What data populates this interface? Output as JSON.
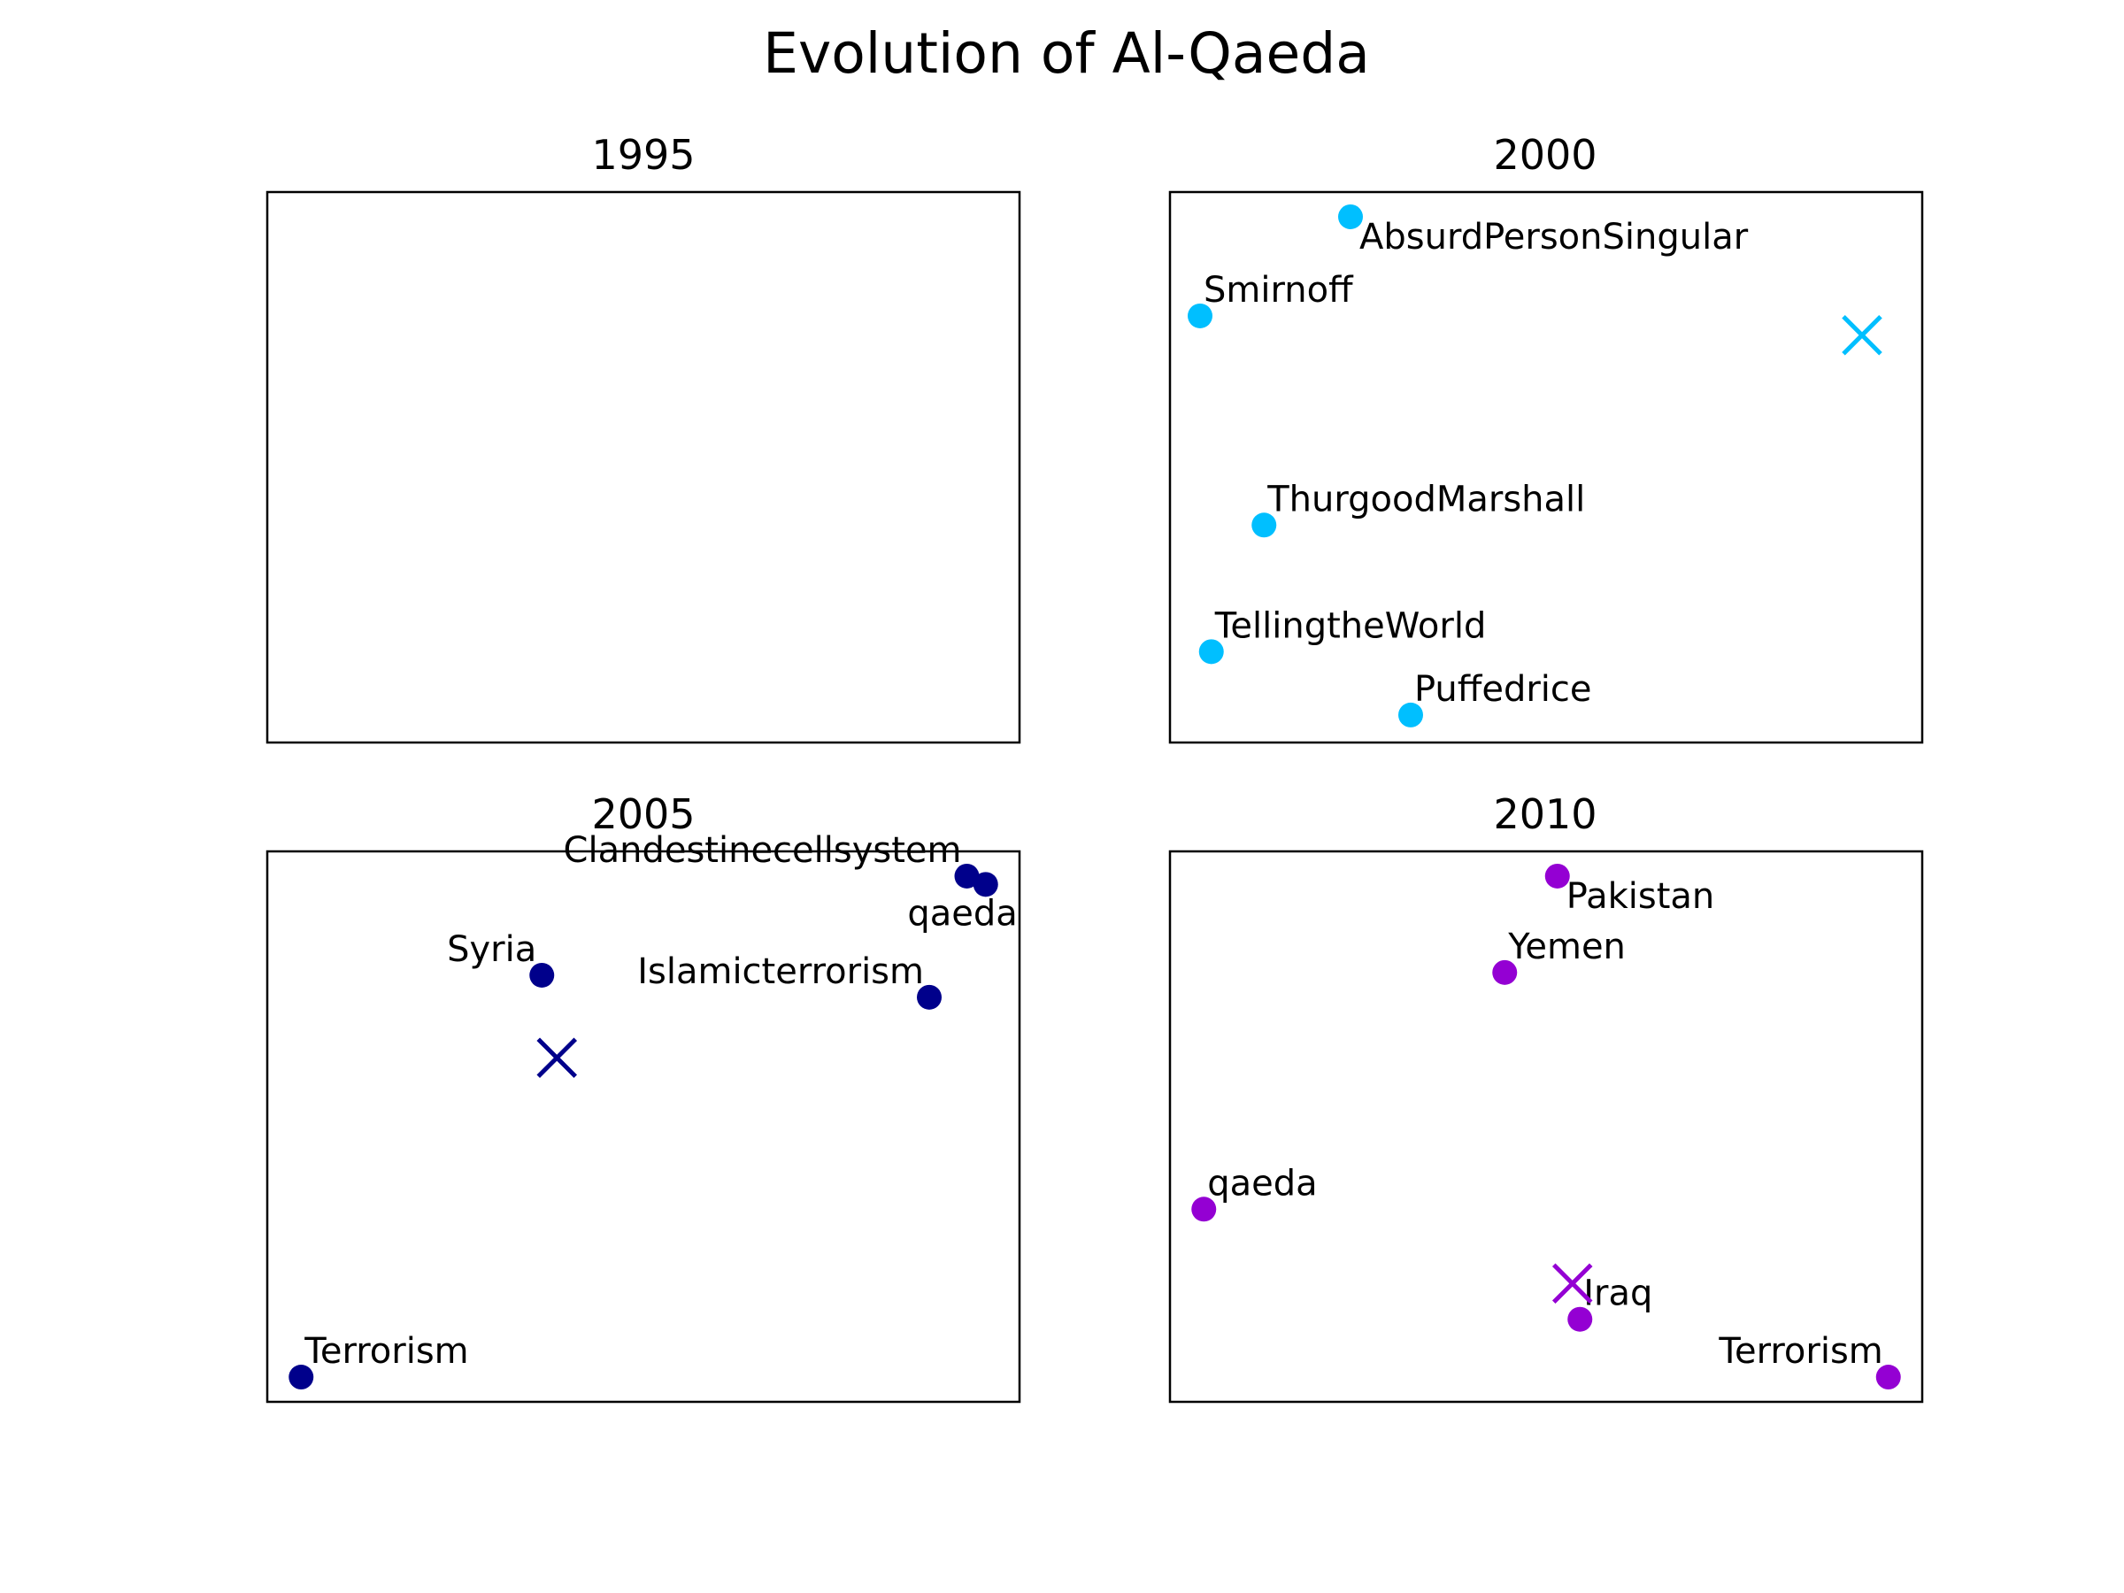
{
  "chart_data": {
    "type": "scatter",
    "title": "Evolution of Al-Qaeda",
    "grid": false,
    "axes_visible": false,
    "panels": [
      {
        "title": "1995",
        "color": "#00bfff",
        "points": [],
        "centroid": null
      },
      {
        "title": "2000",
        "color": "#00bfff",
        "points": [
          {
            "label": "AbsurdPersonSingular",
            "x": 0.24,
            "y": 0.955,
            "anchor": "start",
            "side": "below"
          },
          {
            "label": "Smirnoff",
            "x": 0.04,
            "y": 0.775,
            "anchor": "start",
            "side": "above"
          },
          {
            "label": "ThurgoodMarshall",
            "x": 0.125,
            "y": 0.395,
            "anchor": "start",
            "side": "above"
          },
          {
            "label": "TellingtheWorld",
            "x": 0.055,
            "y": 0.165,
            "anchor": "start",
            "side": "above"
          },
          {
            "label": "Puffedrice",
            "x": 0.32,
            "y": 0.05,
            "anchor": "start",
            "side": "above"
          }
        ],
        "centroid": {
          "x": 0.92,
          "y": 0.74
        }
      },
      {
        "title": "2005",
        "color": "#00008b",
        "points": [
          {
            "label": "Clandestinecellsystem",
            "x": 0.93,
            "y": 0.955,
            "anchor": "end",
            "side": "above-left"
          },
          {
            "label": "qaeda",
            "x": 0.955,
            "y": 0.94,
            "anchor": "end",
            "side": "below"
          },
          {
            "label": "Syria",
            "x": 0.365,
            "y": 0.775,
            "anchor": "end",
            "side": "above-left"
          },
          {
            "label": "Islamicterrorism",
            "x": 0.88,
            "y": 0.735,
            "anchor": "end",
            "side": "above-left"
          },
          {
            "label": "Terrorism",
            "x": 0.045,
            "y": 0.045,
            "anchor": "start",
            "side": "above"
          }
        ],
        "centroid": {
          "x": 0.385,
          "y": 0.625
        }
      },
      {
        "title": "2010",
        "color": "#9400d3",
        "points": [
          {
            "label": "Pakistan",
            "x": 0.515,
            "y": 0.955,
            "anchor": "start",
            "side": "below"
          },
          {
            "label": "Yemen",
            "x": 0.445,
            "y": 0.78,
            "anchor": "start",
            "side": "above"
          },
          {
            "label": "qaeda",
            "x": 0.045,
            "y": 0.35,
            "anchor": "start",
            "side": "above"
          },
          {
            "label": "Iraq",
            "x": 0.545,
            "y": 0.15,
            "anchor": "start",
            "side": "above"
          },
          {
            "label": "Terrorism",
            "x": 0.955,
            "y": 0.045,
            "anchor": "end",
            "side": "above-left"
          }
        ],
        "centroid": {
          "x": 0.535,
          "y": 0.215
        }
      }
    ]
  }
}
